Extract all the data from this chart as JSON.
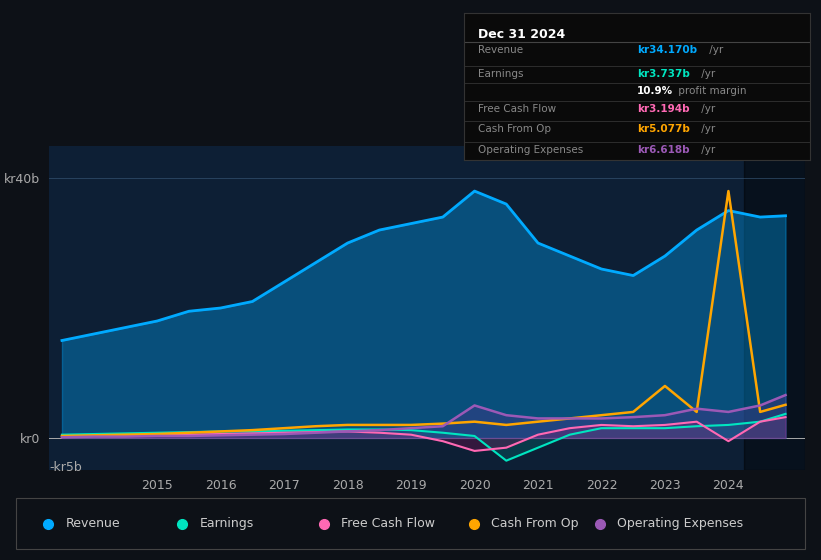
{
  "bg_color": "#0d1117",
  "chart_bg": "#0d1f35",
  "info_box_bg": "#0a0a0a",
  "ylim": [
    -5,
    45
  ],
  "yticks": [
    0,
    40
  ],
  "ytick_labels": [
    "kr0",
    "kr40b"
  ],
  "ylabel_neg": "-kr5b",
  "legend": [
    {
      "label": "Revenue",
      "color": "#00aaff"
    },
    {
      "label": "Earnings",
      "color": "#00e5c0"
    },
    {
      "label": "Free Cash Flow",
      "color": "#ff69b4"
    },
    {
      "label": "Cash From Op",
      "color": "#ffa500"
    },
    {
      "label": "Operating Expenses",
      "color": "#9b59b6"
    }
  ],
  "series": {
    "years": [
      2013.5,
      2014.0,
      2014.5,
      2015.0,
      2015.5,
      2016.0,
      2016.5,
      2017.0,
      2017.5,
      2018.0,
      2018.5,
      2019.0,
      2019.5,
      2020.0,
      2020.5,
      2021.0,
      2021.5,
      2022.0,
      2022.5,
      2023.0,
      2023.5,
      2024.0,
      2024.5,
      2024.9
    ],
    "revenue": [
      15,
      16,
      17,
      18,
      19.5,
      20,
      21,
      24,
      27,
      30,
      32,
      33,
      34,
      38,
      36,
      30,
      28,
      26,
      25,
      28,
      32,
      35,
      34,
      34.2
    ],
    "earnings": [
      0.5,
      0.6,
      0.7,
      0.8,
      0.9,
      1.0,
      1.0,
      1.1,
      1.2,
      1.3,
      1.3,
      1.2,
      0.8,
      0.3,
      -3.5,
      -1.5,
      0.5,
      1.5,
      1.5,
      1.5,
      1.8,
      2.0,
      2.5,
      3.7
    ],
    "free_cash_flow": [
      0.2,
      0.3,
      0.3,
      0.4,
      0.5,
      0.6,
      0.7,
      0.8,
      0.9,
      1.0,
      0.8,
      0.5,
      -0.5,
      -2.0,
      -1.5,
      0.5,
      1.5,
      2.0,
      1.8,
      2.0,
      2.5,
      -0.5,
      2.5,
      3.2
    ],
    "cash_from_op": [
      0.3,
      0.4,
      0.5,
      0.6,
      0.8,
      1.0,
      1.2,
      1.5,
      1.8,
      2.0,
      2.0,
      2.0,
      2.2,
      2.5,
      2.0,
      2.5,
      3.0,
      3.5,
      4.0,
      8.0,
      4.0,
      38.0,
      4.0,
      5.1
    ],
    "operating_expenses": [
      0.1,
      0.2,
      0.2,
      0.3,
      0.3,
      0.4,
      0.5,
      0.6,
      0.8,
      1.0,
      1.2,
      1.5,
      1.8,
      5.0,
      3.5,
      3.0,
      3.0,
      3.0,
      3.2,
      3.5,
      4.5,
      4.0,
      5.0,
      6.6
    ]
  },
  "xticks": [
    2015,
    2016,
    2017,
    2018,
    2019,
    2020,
    2021,
    2022,
    2023,
    2024
  ],
  "xlim": [
    2013.3,
    2025.2
  ],
  "info_rows": [
    {
      "label": "Revenue",
      "value": "kr34.170b",
      "suffix": " /yr",
      "color": "#00aaff"
    },
    {
      "label": "Earnings",
      "value": "kr3.737b",
      "suffix": " /yr",
      "color": "#00e5c0"
    },
    {
      "label": "",
      "value": "10.9%",
      "suffix": " profit margin",
      "color": "#ffffff"
    },
    {
      "label": "Free Cash Flow",
      "value": "kr3.194b",
      "suffix": " /yr",
      "color": "#ff69b4"
    },
    {
      "label": "Cash From Op",
      "value": "kr5.077b",
      "suffix": " /yr",
      "color": "#ffa500"
    },
    {
      "label": "Operating Expenses",
      "value": "kr6.618b",
      "suffix": " /yr",
      "color": "#9b59b6"
    }
  ]
}
